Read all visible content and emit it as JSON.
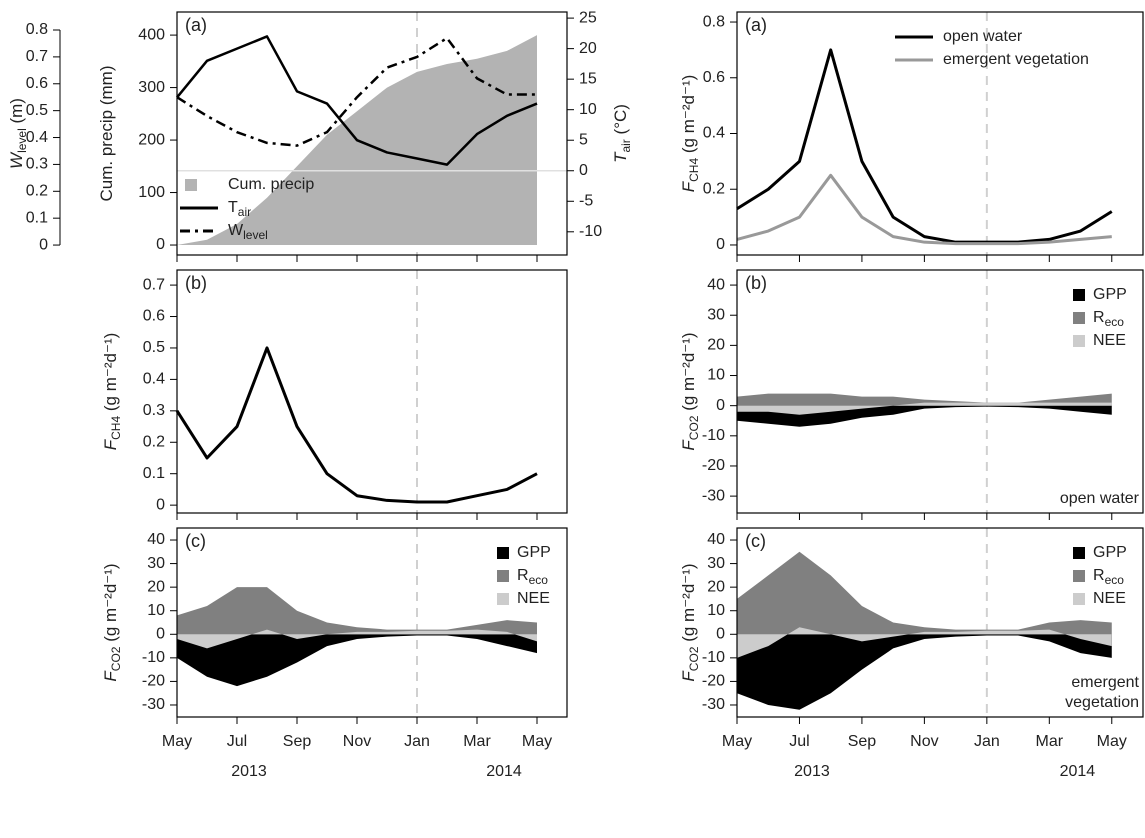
{
  "chart_data": [
    {
      "type": "combo",
      "panel_label": "(a)",
      "x": [
        "2013-05",
        "2013-06",
        "2013-07",
        "2013-08",
        "2013-09",
        "2013-10",
        "2013-11",
        "2013-12",
        "2014-01",
        "2014-02",
        "2014-03",
        "2014-04",
        "2014-05"
      ],
      "xlim": [
        "2013-05",
        "2014-06"
      ],
      "vline": "2014-01",
      "ylabel": {
        "text": "Cum. precip (mm)"
      },
      "ylim": [
        -19,
        444
      ],
      "yticks": [
        0,
        100,
        200,
        300,
        400
      ],
      "y2label": {
        "text": "T",
        "sub": "air",
        "rest": " (°C)"
      },
      "y2lim": [
        -13.8,
        26
      ],
      "y2ticks": [
        -10,
        -5,
        0,
        5,
        10,
        15,
        20,
        25
      ],
      "y3label": {
        "text": "W",
        "sub": "level",
        "rest": " (m)"
      },
      "y3lim": [
        -0.037,
        0.867
      ],
      "y3ticks": [
        0,
        0.1,
        0.2,
        0.3,
        0.4,
        0.5,
        0.6,
        0.7,
        0.8
      ],
      "zero_line": true,
      "legend": "bottom-left",
      "series": [
        {
          "name": "Cum. precip",
          "style": "area",
          "color": "#b3b3b3",
          "values": [
            0,
            10,
            40,
            90,
            150,
            210,
            255,
            300,
            330,
            345,
            355,
            370,
            400
          ]
        },
        {
          "name": "T",
          "sub": "air",
          "style": "solid",
          "color": "#000000",
          "axis": "y2",
          "values": [
            12,
            18,
            20,
            22,
            13,
            11,
            5,
            3,
            2,
            1,
            6,
            9,
            11
          ]
        },
        {
          "name": "W",
          "sub": "level",
          "style": "dashdot",
          "color": "#000000",
          "axis": "y3",
          "values": [
            0.55,
            0.48,
            0.42,
            0.38,
            0.37,
            0.42,
            0.55,
            0.66,
            0.7,
            0.77,
            0.62,
            0.56,
            0.56
          ]
        }
      ]
    },
    {
      "type": "line",
      "panel_label": "(b)",
      "x": [
        "2013-05",
        "2013-06",
        "2013-07",
        "2013-08",
        "2013-09",
        "2013-10",
        "2013-11",
        "2013-12",
        "2014-01",
        "2014-02",
        "2014-03",
        "2014-04",
        "2014-05"
      ],
      "xlim": [
        "2013-05",
        "2014-06"
      ],
      "vline": "2014-01",
      "ylabel": {
        "text": "F",
        "sub": "CH4",
        "rest": " (g m⁻²d⁻¹)"
      },
      "ylim": [
        -0.025,
        0.748
      ],
      "yticks": [
        0,
        0.1,
        0.2,
        0.3,
        0.4,
        0.5,
        0.6,
        0.7
      ],
      "series": [
        {
          "style": "solid",
          "color": "#000000",
          "values": [
            0.3,
            0.15,
            0.25,
            0.5,
            0.25,
            0.1,
            0.03,
            0.015,
            0.01,
            0.01,
            0.03,
            0.05,
            0.1
          ]
        }
      ]
    },
    {
      "type": "area",
      "panel_label": "(c)",
      "x": [
        "2013-05",
        "2013-06",
        "2013-07",
        "2013-08",
        "2013-09",
        "2013-10",
        "2013-11",
        "2013-12",
        "2014-01",
        "2014-02",
        "2014-03",
        "2014-04",
        "2014-05"
      ],
      "xlim": [
        "2013-05",
        "2014-06"
      ],
      "vline": "2014-01",
      "xticks": [
        {
          "value": "2013-05",
          "label": "May"
        },
        {
          "value": "2013-07",
          "label": "Jul"
        },
        {
          "value": "2013-09",
          "label": "Sep"
        },
        {
          "value": "2013-11",
          "label": "Nov"
        },
        {
          "value": "2014-01",
          "label": "Jan"
        },
        {
          "value": "2014-03",
          "label": "Mar"
        },
        {
          "value": "2014-05",
          "label": "May"
        }
      ],
      "years": [
        "2013",
        "2014"
      ],
      "ylabel": {
        "text": "F",
        "sub": "CO2",
        "rest": " (g m⁻²d⁻¹)"
      },
      "ylim": [
        -35.1,
        45.1
      ],
      "yticks": [
        -30,
        -20,
        -10,
        0,
        10,
        20,
        30,
        40
      ],
      "legend": "top-right",
      "series": [
        {
          "name": "GPP",
          "color": "#000000",
          "values": [
            -10,
            -18,
            -22,
            -18,
            -12,
            -5,
            -2,
            -1,
            -0.5,
            -0.5,
            -2,
            -5,
            -8
          ]
        },
        {
          "name": "R",
          "sub": "eco",
          "color": "#808080",
          "values": [
            8,
            12,
            20,
            20,
            10,
            5,
            3,
            2,
            2,
            2,
            4,
            6,
            5
          ]
        },
        {
          "name": "NEE",
          "color": "#cccccc",
          "values": [
            -2,
            -6,
            -2,
            2,
            -2,
            0,
            1,
            1,
            1.5,
            1.5,
            2,
            1,
            -3
          ]
        }
      ]
    },
    {
      "type": "line",
      "panel_label": "(a)",
      "x": [
        "2013-05",
        "2013-06",
        "2013-07",
        "2013-08",
        "2013-09",
        "2013-10",
        "2013-11",
        "2013-12",
        "2014-01",
        "2014-02",
        "2014-03",
        "2014-04",
        "2014-05"
      ],
      "xlim": [
        "2013-05",
        "2014-06"
      ],
      "vline": "2014-01",
      "ylabel": {
        "text": "F",
        "sub": "CH4",
        "rest": " (g m⁻²d⁻¹)"
      },
      "ylim": [
        -0.036,
        0.836
      ],
      "yticks": [
        0,
        0.2,
        0.4,
        0.6,
        0.8
      ],
      "legend": "top-right",
      "series": [
        {
          "name": "open water",
          "style": "solid",
          "color": "#000000",
          "values": [
            0.13,
            0.2,
            0.3,
            0.7,
            0.3,
            0.1,
            0.03,
            0.01,
            0.01,
            0.01,
            0.02,
            0.05,
            0.12
          ]
        },
        {
          "name": "emergent vegetation",
          "style": "solid",
          "color": "#999999",
          "values": [
            0.02,
            0.05,
            0.1,
            0.25,
            0.1,
            0.03,
            0.01,
            0.005,
            0.005,
            0.005,
            0.01,
            0.02,
            0.03
          ]
        }
      ]
    },
    {
      "type": "area",
      "panel_label": "(b)",
      "x": [
        "2013-05",
        "2013-06",
        "2013-07",
        "2013-08",
        "2013-09",
        "2013-10",
        "2013-11",
        "2013-12",
        "2014-01",
        "2014-02",
        "2014-03",
        "2014-04",
        "2014-05"
      ],
      "xlim": [
        "2013-05",
        "2014-06"
      ],
      "vline": "2014-01",
      "ylabel": {
        "text": "F",
        "sub": "CO2",
        "rest": " (g m⁻²d⁻¹)"
      },
      "ylim": [
        -35.6,
        45
      ],
      "yticks": [
        -30,
        -20,
        -10,
        0,
        10,
        20,
        30,
        40
      ],
      "legend": "top-right",
      "annotation": [
        "open water"
      ],
      "series": [
        {
          "name": "GPP",
          "color": "#000000",
          "values": [
            -5,
            -6,
            -7,
            -6,
            -4,
            -3,
            -1,
            -0.5,
            -0.3,
            -0.5,
            -1,
            -2,
            -3
          ]
        },
        {
          "name": "R",
          "sub": "eco",
          "color": "#808080",
          "values": [
            3,
            4,
            4,
            4,
            3,
            3,
            2,
            1.5,
            1,
            1,
            2,
            3,
            4
          ]
        },
        {
          "name": "NEE",
          "color": "#cccccc",
          "values": [
            -2,
            -2,
            -3,
            -2,
            -1,
            0,
            1,
            1,
            1,
            1,
            1,
            1,
            1
          ]
        }
      ]
    },
    {
      "type": "area",
      "panel_label": "(c)",
      "x": [
        "2013-05",
        "2013-06",
        "2013-07",
        "2013-08",
        "2013-09",
        "2013-10",
        "2013-11",
        "2013-12",
        "2014-01",
        "2014-02",
        "2014-03",
        "2014-04",
        "2014-05"
      ],
      "xlim": [
        "2013-05",
        "2014-06"
      ],
      "vline": "2014-01",
      "xticks": [
        {
          "value": "2013-05",
          "label": "May"
        },
        {
          "value": "2013-07",
          "label": "Jul"
        },
        {
          "value": "2013-09",
          "label": "Sep"
        },
        {
          "value": "2013-11",
          "label": "Nov"
        },
        {
          "value": "2014-01",
          "label": "Jan"
        },
        {
          "value": "2014-03",
          "label": "Mar"
        },
        {
          "value": "2014-05",
          "label": "May"
        }
      ],
      "years": [
        "2013",
        "2014"
      ],
      "ylabel": {
        "text": "F",
        "sub": "CO2",
        "rest": " (g m⁻²d⁻¹)"
      },
      "ylim": [
        -35.1,
        45.1
      ],
      "yticks": [
        -30,
        -20,
        -10,
        0,
        10,
        20,
        30,
        40
      ],
      "legend": "top-right",
      "annotation": [
        "emergent",
        "vegetation"
      ],
      "series": [
        {
          "name": "GPP",
          "color": "#000000",
          "values": [
            -25,
            -30,
            -32,
            -25,
            -15,
            -6,
            -2,
            -1,
            -0.5,
            -0.5,
            -3,
            -8,
            -10
          ]
        },
        {
          "name": "R",
          "sub": "eco",
          "color": "#808080",
          "values": [
            15,
            25,
            35,
            25,
            12,
            5,
            3,
            2,
            2,
            2,
            5,
            6,
            5
          ]
        },
        {
          "name": "NEE",
          "color": "#cccccc",
          "values": [
            -10,
            -5,
            3,
            0,
            -3,
            -1,
            1,
            1,
            1.5,
            1.5,
            2,
            -2,
            -5
          ]
        }
      ]
    }
  ]
}
